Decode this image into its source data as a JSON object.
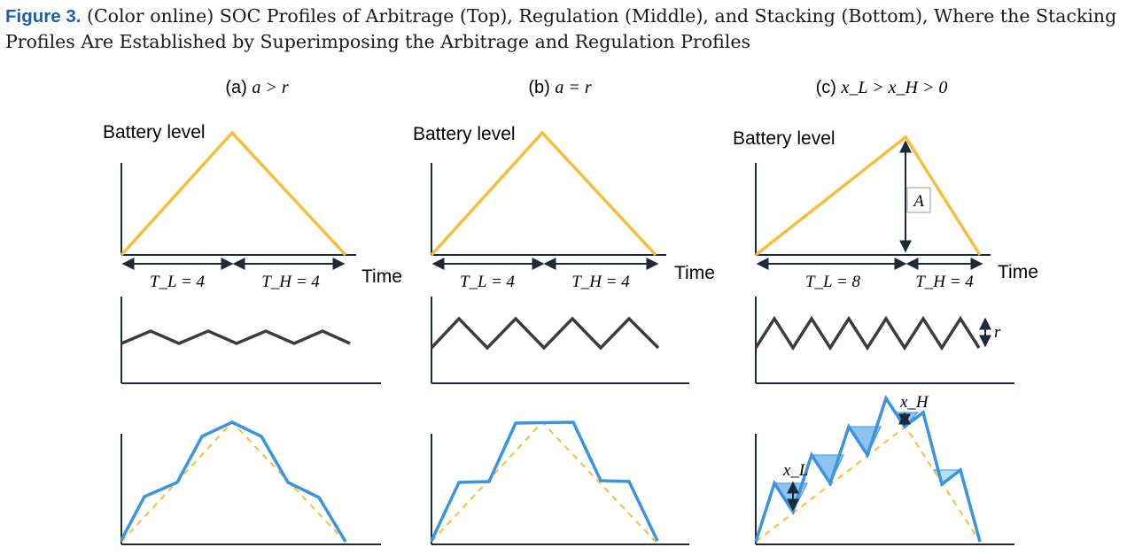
{
  "caption": {
    "label": "Figure 3.",
    "text": "(Color online) SOC Profiles of Arbitrage (Top), Regulation (Middle), and Stacking (Bottom), Where the Stacking Profiles Are Established by Superimposing the Arbitrage and Regulation Profiles"
  },
  "colors": {
    "arbitrage": "#F5BE3C",
    "regulation": "#3c3c3c",
    "stacking": "#3A94E0",
    "shade": "#8EC4F4",
    "axis": "#1c2a3a",
    "dashed": "#F5BE3C"
  },
  "panels": [
    {
      "tag": "(a)",
      "condition": "a > r",
      "ylabel": "Battery level",
      "xlabel": "Time",
      "tl_label": "T_L = 4",
      "th_label": "T_H = 4"
    },
    {
      "tag": "(b)",
      "condition": "a = r",
      "ylabel": "Battery level",
      "xlabel": "Time",
      "tl_label": "T_L = 4",
      "th_label": "T_H = 4"
    },
    {
      "tag": "(c)",
      "condition": "x_L > x_H > 0",
      "ylabel": "Battery level",
      "xlabel": "Time",
      "tl_label": "T_L = 8",
      "th_label": "T_H = 4",
      "amplitude_label": "A",
      "reg_label": "r",
      "xl_label": "x_L",
      "xh_label": "x_H"
    }
  ]
}
